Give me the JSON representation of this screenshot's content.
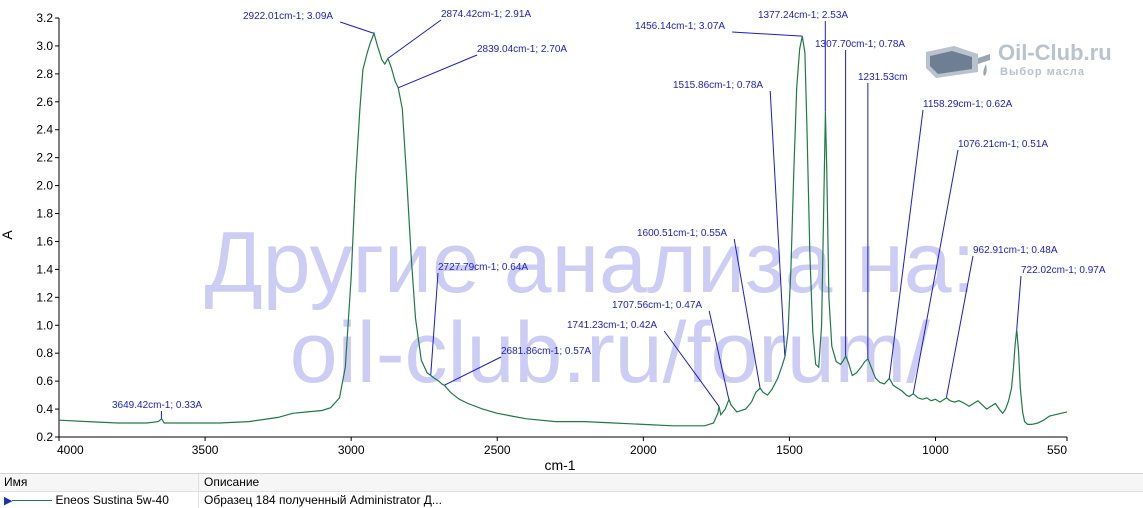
{
  "chart_data": {
    "type": "line",
    "xlabel": "cm-1",
    "ylabel": "A",
    "xlim": [
      4000,
      550
    ],
    "ylim": [
      0.2,
      3.2
    ],
    "x_direction": "descending",
    "x_ticks": [
      "4000",
      "3500",
      "3000",
      "2500",
      "2000",
      "1500",
      "1000",
      "550"
    ],
    "y_ticks": [
      "0.2",
      "0.4",
      "0.6",
      "0.8",
      "1.0",
      "1.2",
      "1.4",
      "1.6",
      "1.8",
      "2.0",
      "2.2",
      "2.4",
      "2.6",
      "2.8",
      "3.0",
      "3.2"
    ],
    "grid": false,
    "series_color": "#1e7a46",
    "annotation_color": "#1a1adb",
    "series": [
      {
        "name": "Eneos Sustina 5w-40",
        "points": [
          [
            4000,
            0.32
          ],
          [
            3900,
            0.31
          ],
          [
            3800,
            0.3
          ],
          [
            3700,
            0.3
          ],
          [
            3660,
            0.31
          ],
          [
            3649,
            0.33
          ],
          [
            3640,
            0.3
          ],
          [
            3550,
            0.3
          ],
          [
            3450,
            0.3
          ],
          [
            3350,
            0.31
          ],
          [
            3250,
            0.34
          ],
          [
            3200,
            0.37
          ],
          [
            3150,
            0.38
          ],
          [
            3100,
            0.39
          ],
          [
            3070,
            0.41
          ],
          [
            3040,
            0.48
          ],
          [
            3020,
            0.7
          ],
          [
            3000,
            1.35
          ],
          [
            2985,
            2.05
          ],
          [
            2970,
            2.55
          ],
          [
            2960,
            2.83
          ],
          [
            2945,
            2.95
          ],
          [
            2935,
            3.02
          ],
          [
            2922,
            3.09
          ],
          [
            2910,
            3.0
          ],
          [
            2895,
            2.9
          ],
          [
            2885,
            2.87
          ],
          [
            2874,
            2.91
          ],
          [
            2862,
            2.84
          ],
          [
            2850,
            2.75
          ],
          [
            2839,
            2.7
          ],
          [
            2825,
            2.55
          ],
          [
            2810,
            2.05
          ],
          [
            2795,
            1.5
          ],
          [
            2780,
            1.05
          ],
          [
            2760,
            0.75
          ],
          [
            2740,
            0.66
          ],
          [
            2727,
            0.64
          ],
          [
            2715,
            0.62
          ],
          [
            2700,
            0.6
          ],
          [
            2690,
            0.58
          ],
          [
            2681,
            0.57
          ],
          [
            2660,
            0.52
          ],
          [
            2630,
            0.47
          ],
          [
            2600,
            0.44
          ],
          [
            2550,
            0.4
          ],
          [
            2500,
            0.37
          ],
          [
            2450,
            0.35
          ],
          [
            2400,
            0.33
          ],
          [
            2300,
            0.31
          ],
          [
            2200,
            0.31
          ],
          [
            2100,
            0.3
          ],
          [
            2000,
            0.29
          ],
          [
            1900,
            0.28
          ],
          [
            1850,
            0.28
          ],
          [
            1790,
            0.28
          ],
          [
            1760,
            0.3
          ],
          [
            1745,
            0.37
          ],
          [
            1741,
            0.42
          ],
          [
            1735,
            0.36
          ],
          [
            1720,
            0.4
          ],
          [
            1707,
            0.47
          ],
          [
            1700,
            0.43
          ],
          [
            1680,
            0.38
          ],
          [
            1650,
            0.4
          ],
          [
            1630,
            0.45
          ],
          [
            1615,
            0.52
          ],
          [
            1600,
            0.55
          ],
          [
            1590,
            0.52
          ],
          [
            1575,
            0.5
          ],
          [
            1560,
            0.54
          ],
          [
            1540,
            0.62
          ],
          [
            1525,
            0.71
          ],
          [
            1515,
            0.78
          ],
          [
            1505,
            0.95
          ],
          [
            1495,
            1.4
          ],
          [
            1485,
            2.1
          ],
          [
            1475,
            2.7
          ],
          [
            1465,
            2.98
          ],
          [
            1456,
            3.07
          ],
          [
            1447,
            2.95
          ],
          [
            1440,
            2.4
          ],
          [
            1430,
            1.5
          ],
          [
            1420,
            0.95
          ],
          [
            1410,
            0.72
          ],
          [
            1400,
            0.7
          ],
          [
            1390,
            1.0
          ],
          [
            1383,
            1.8
          ],
          [
            1377,
            2.53
          ],
          [
            1372,
            2.1
          ],
          [
            1365,
            1.2
          ],
          [
            1355,
            0.85
          ],
          [
            1340,
            0.74
          ],
          [
            1325,
            0.72
          ],
          [
            1315,
            0.75
          ],
          [
            1307,
            0.78
          ],
          [
            1298,
            0.73
          ],
          [
            1285,
            0.64
          ],
          [
            1270,
            0.66
          ],
          [
            1255,
            0.7
          ],
          [
            1242,
            0.74
          ],
          [
            1231,
            0.76
          ],
          [
            1220,
            0.7
          ],
          [
            1205,
            0.62
          ],
          [
            1190,
            0.59
          ],
          [
            1175,
            0.58
          ],
          [
            1158,
            0.62
          ],
          [
            1145,
            0.57
          ],
          [
            1130,
            0.55
          ],
          [
            1115,
            0.53
          ],
          [
            1100,
            0.5
          ],
          [
            1090,
            0.49
          ],
          [
            1076,
            0.51
          ],
          [
            1060,
            0.48
          ],
          [
            1045,
            0.47
          ],
          [
            1030,
            0.48
          ],
          [
            1015,
            0.46
          ],
          [
            1000,
            0.47
          ],
          [
            985,
            0.45
          ],
          [
            970,
            0.47
          ],
          [
            962,
            0.48
          ],
          [
            950,
            0.46
          ],
          [
            935,
            0.45
          ],
          [
            920,
            0.46
          ],
          [
            900,
            0.44
          ],
          [
            885,
            0.42
          ],
          [
            870,
            0.44
          ],
          [
            855,
            0.46
          ],
          [
            840,
            0.43
          ],
          [
            825,
            0.4
          ],
          [
            810,
            0.42
          ],
          [
            795,
            0.44
          ],
          [
            782,
            0.4
          ],
          [
            770,
            0.37
          ],
          [
            760,
            0.4
          ],
          [
            750,
            0.46
          ],
          [
            740,
            0.55
          ],
          [
            733,
            0.7
          ],
          [
            728,
            0.85
          ],
          [
            722,
            0.97
          ],
          [
            716,
            0.82
          ],
          [
            710,
            0.55
          ],
          [
            702,
            0.38
          ],
          [
            695,
            0.31
          ],
          [
            685,
            0.29
          ],
          [
            670,
            0.29
          ],
          [
            650,
            0.3
          ],
          [
            630,
            0.32
          ],
          [
            610,
            0.35
          ],
          [
            590,
            0.36
          ],
          [
            570,
            0.37
          ],
          [
            550,
            0.38
          ]
        ]
      }
    ],
    "annotations": [
      {
        "text": "3649.42cm-1; 0.33A",
        "x": 3649.42,
        "y": 0.33
      },
      {
        "text": "2922.01cm-1; 3.09A",
        "x": 2922.01,
        "y": 3.09
      },
      {
        "text": "2874.42cm-1; 2.91A",
        "x": 2874.42,
        "y": 2.91
      },
      {
        "text": "2839.04cm-1; 2.70A",
        "x": 2839.04,
        "y": 2.7
      },
      {
        "text": "2727.79cm-1; 0.64A",
        "x": 2727.79,
        "y": 0.64
      },
      {
        "text": "2681.86cm-1; 0.57A",
        "x": 2681.86,
        "y": 0.57
      },
      {
        "text": "1741.23cm-1; 0.42A",
        "x": 1741.23,
        "y": 0.42
      },
      {
        "text": "1707.56cm-1; 0.47A",
        "x": 1707.56,
        "y": 0.47
      },
      {
        "text": "1600.51cm-1; 0.55A",
        "x": 1600.51,
        "y": 0.55
      },
      {
        "text": "1515.86cm-1; 0.78A",
        "x": 1515.86,
        "y": 0.78
      },
      {
        "text": "1456.14cm-1; 3.07A",
        "x": 1456.14,
        "y": 3.07
      },
      {
        "text": "1377.24cm-1; 2.53A",
        "x": 1377.24,
        "y": 2.53
      },
      {
        "text": "1307.70cm-1; 0.78A",
        "x": 1307.7,
        "y": 0.78
      },
      {
        "text": "1231.53cm",
        "x": 1231.53,
        "y": 0.76
      },
      {
        "text": "1158.29cm-1; 0.62A",
        "x": 1158.29,
        "y": 0.62
      },
      {
        "text": "1076.21cm-1; 0.51A",
        "x": 1076.21,
        "y": 0.51
      },
      {
        "text": "962.91cm-1; 0.48A",
        "x": 962.91,
        "y": 0.48
      },
      {
        "text": "722.02cm-1; 0.97A",
        "x": 722.02,
        "y": 0.97
      }
    ]
  },
  "watermark": {
    "line1": "Другие анализа на:",
    "line2": "oil-club.ru/forum/"
  },
  "logo": {
    "title": "Oil-Club.ru",
    "subtitle": "Выбор масла"
  },
  "legend_table": {
    "headers": {
      "name": "Имя",
      "description": "Описание"
    },
    "rows": [
      {
        "name": "Eneos Sustina 5w-40",
        "description": "Образец 184 полученный Administrator Д..."
      }
    ]
  }
}
